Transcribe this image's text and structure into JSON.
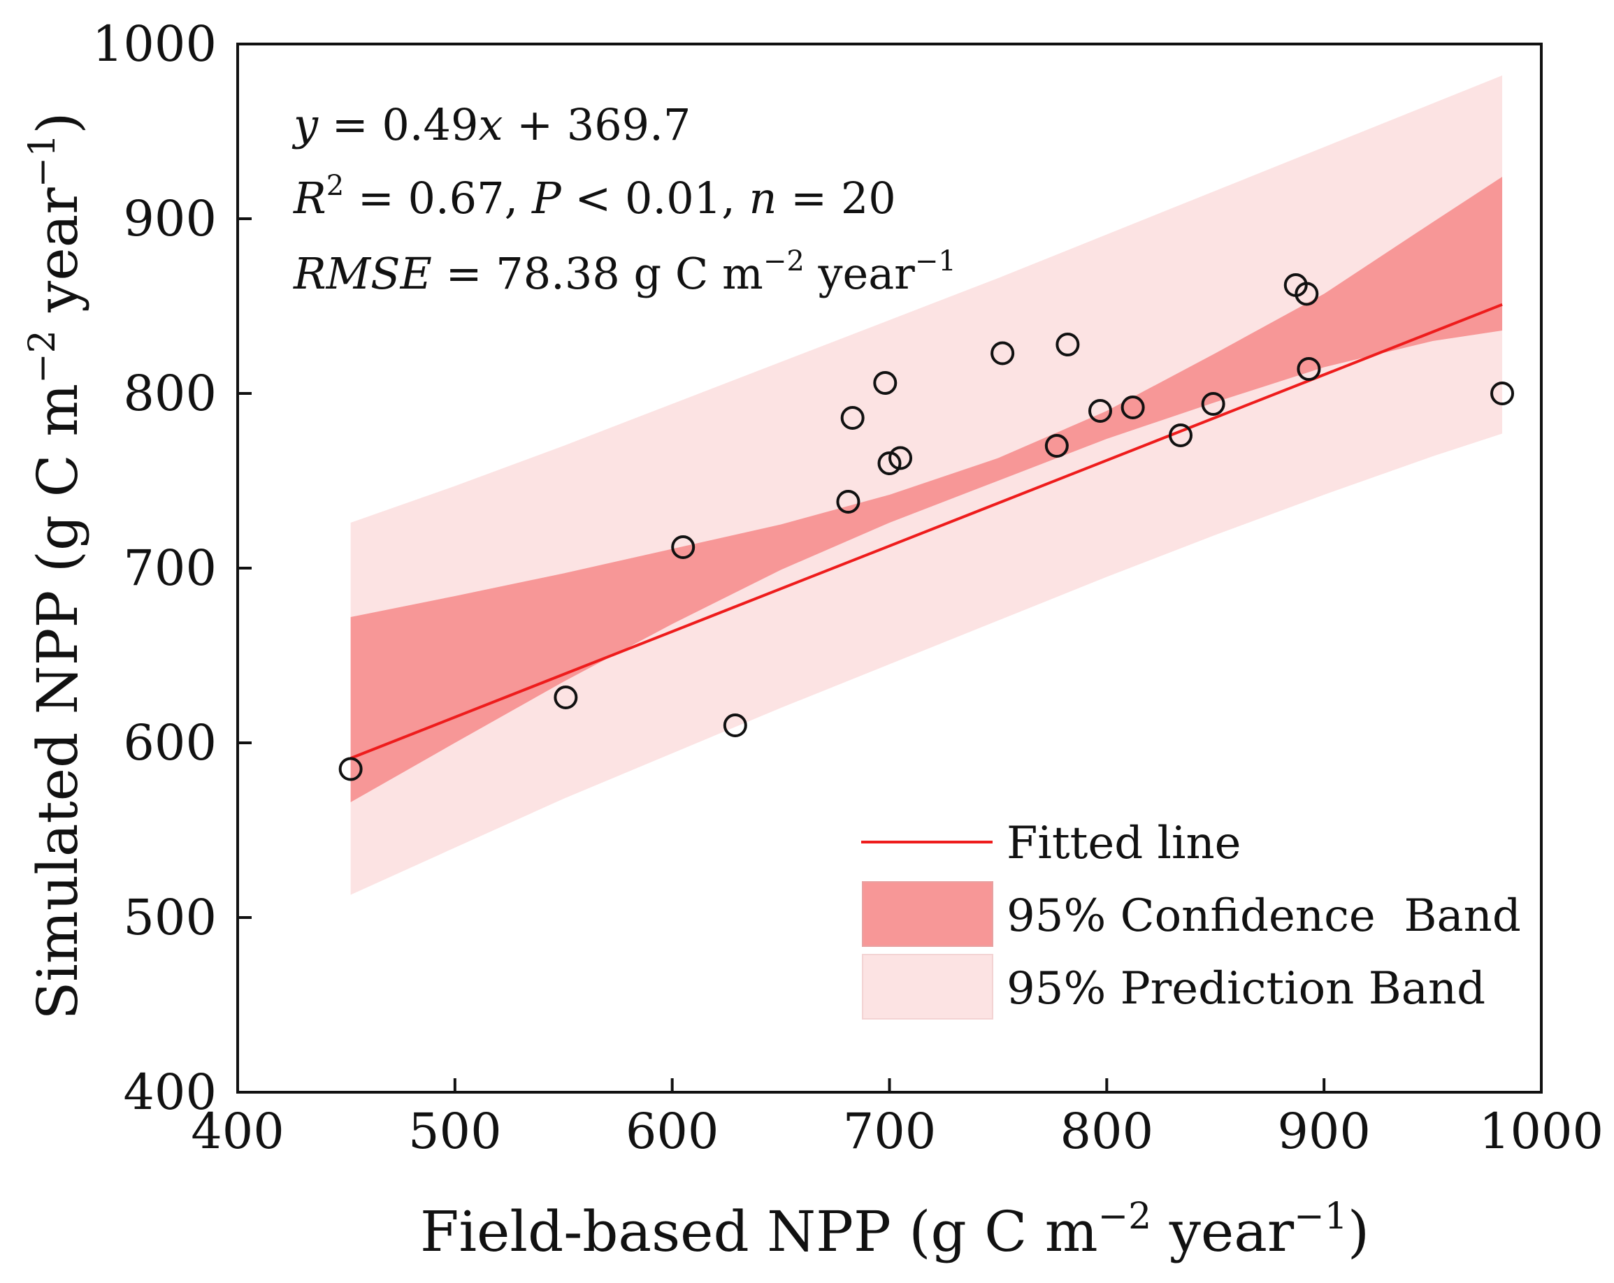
{
  "chart_data": {
    "type": "scatter",
    "title": "",
    "xlabel": "Field-based NPP (g C m−2 year−1)",
    "xlabel_parts": {
      "main": "Field-based NPP (g C m",
      "sup1": "−2",
      "mid": " year",
      "sup2": "−1",
      "end": ")"
    },
    "ylabel": "Simulated NPP (g C m−2 year−1)",
    "ylabel_parts": {
      "main": "Simulated NPP (g C m",
      "sup1": "−2",
      "mid": " year",
      "sup2": "−1",
      "end": ")"
    },
    "xlim": [
      400,
      1000
    ],
    "ylim": [
      400,
      1000
    ],
    "xticks": [
      400,
      500,
      600,
      700,
      800,
      900,
      1000
    ],
    "yticks": [
      400,
      500,
      600,
      700,
      800,
      900,
      1000
    ],
    "grid": false,
    "points": {
      "x": [
        452,
        551,
        605,
        629,
        681,
        683,
        698,
        700,
        705,
        752,
        777,
        782,
        797,
        812,
        834,
        849,
        887,
        892,
        893,
        982
      ],
      "y": [
        585,
        626,
        712,
        610,
        738,
        786,
        806,
        760,
        763,
        823,
        770,
        828,
        790,
        792,
        776,
        794,
        862,
        857,
        814,
        800
      ]
    },
    "fit": {
      "slope": 0.49,
      "intercept": 369.7,
      "x_range": [
        452,
        982
      ]
    },
    "confidence_band": {
      "x": [
        452,
        500,
        550,
        600,
        650,
        700,
        750,
        800,
        850,
        900,
        950,
        982
      ],
      "lower": [
        566,
        600,
        635,
        668,
        699,
        726,
        750,
        774,
        795,
        815,
        830,
        836
      ],
      "upper": [
        672,
        684,
        697,
        711,
        725,
        742,
        763,
        790,
        823,
        857,
        898,
        924
      ]
    },
    "prediction_band": {
      "x": [
        452,
        500,
        550,
        600,
        650,
        700,
        750,
        800,
        850,
        900,
        950,
        982
      ],
      "lower": [
        513,
        540,
        568,
        594,
        620,
        645,
        670,
        695,
        719,
        742,
        764,
        777
      ],
      "upper": [
        726,
        747,
        770,
        794,
        818,
        842,
        866,
        891,
        916,
        941,
        966,
        982
      ]
    },
    "annotations": {
      "line1": {
        "y": "y",
        "eq": " = 0.49",
        "x": "x",
        "rest": " + 369.7"
      },
      "line2": {
        "R": "R",
        "sup": "2",
        "r2": " = 0.67, ",
        "P": "P",
        "p": " < 0.01, ",
        "n": "n",
        "nval": " = 20"
      },
      "line3": {
        "rmse": "RMSE",
        "val": " = 78.38 g C m",
        "sup1": "−2",
        "mid": " year",
        "sup2": "−1"
      }
    },
    "legend": {
      "position": "bottom-right",
      "entries": [
        {
          "label": "Fitted line",
          "kind": "line"
        },
        {
          "label": "95% Confidence  Band",
          "kind": "band"
        },
        {
          "label": "95% Prediction Band",
          "kind": "band"
        }
      ]
    },
    "colors": {
      "fit_line": "#ee1c1c",
      "confidence_band": "#f79797",
      "prediction_band": "#fce3e3",
      "marker": "#111111"
    }
  }
}
